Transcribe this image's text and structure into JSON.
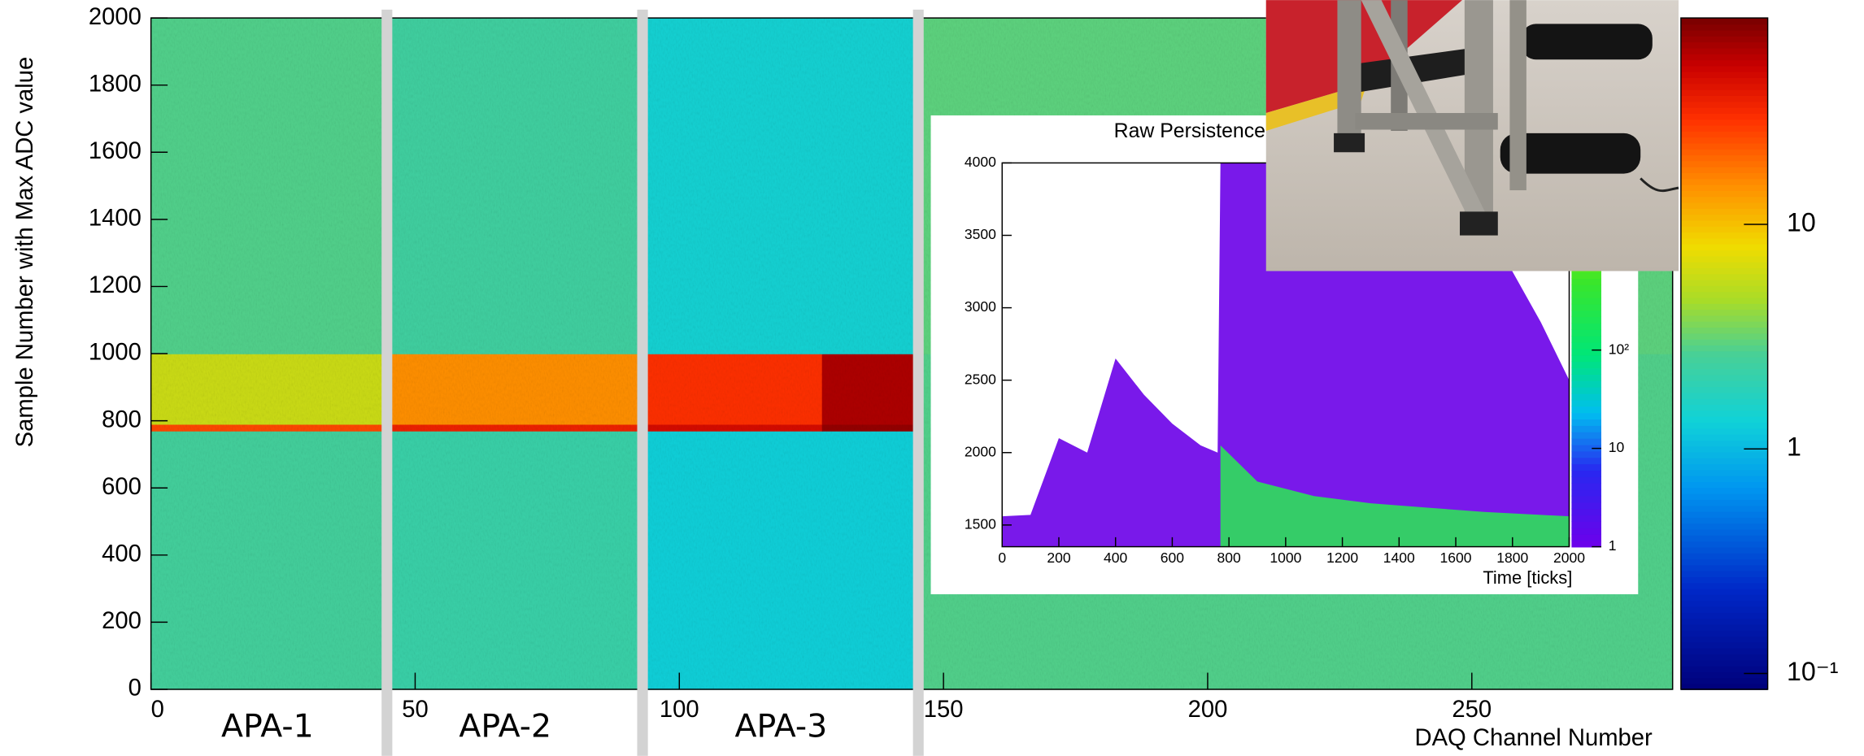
{
  "chart_data": [
    {
      "type": "heatmap",
      "ylabel": "Sample Number with Max ADC value",
      "xlabel": "DAQ Channel Number",
      "annotations": [
        "APA-1",
        "APA-2",
        "APA-3"
      ],
      "xbins": [
        0,
        15,
        30,
        44,
        59,
        74,
        93,
        110,
        127,
        145,
        200,
        288
      ],
      "ybins": [
        0,
        770,
        790,
        1000,
        2000
      ],
      "z": [
        [
          2.5,
          2.5,
          2.5,
          2.2,
          2.2,
          2.2,
          1.3,
          1.3,
          1.3,
          2.8,
          2.8
        ],
        [
          25,
          25,
          25,
          35,
          35,
          35,
          45,
          45,
          70,
          2.8,
          2.8
        ],
        [
          6,
          6,
          6,
          15,
          15,
          15,
          30,
          30,
          60,
          2.8,
          2.8
        ],
        [
          2.8,
          2.8,
          2.8,
          2.4,
          2.4,
          2.4,
          1.4,
          1.4,
          1.4,
          3,
          3
        ]
      ],
      "xlim": [
        0,
        288
      ],
      "ylim": [
        0,
        2000
      ],
      "xticks": [
        0,
        50,
        100,
        150,
        200,
        250
      ],
      "yticks": [
        0,
        200,
        400,
        600,
        800,
        1000,
        1200,
        1400,
        1600,
        1800,
        2000
      ],
      "zlim": [
        0.085,
        83
      ],
      "zlog": true,
      "colormap": "rainbow",
      "zticks": [
        {
          "value": 0.1,
          "label": "10⁻¹"
        },
        1,
        10
      ]
    },
    {
      "type": "area",
      "title": "Raw Persistence",
      "xlabel": "Time [ticks]",
      "x": [
        0,
        100,
        200,
        300,
        400,
        500,
        600,
        700,
        760,
        770,
        900,
        1100,
        1300,
        1500,
        1700,
        1900,
        2000
      ],
      "series": [
        {
          "color": "#6a00e8",
          "values": [
            1560,
            1570,
            2100,
            2000,
            2650,
            2400,
            2200,
            2050,
            2000,
            4000,
            4000,
            4000,
            4000,
            4000,
            3600,
            2900,
            2500
          ]
        },
        {
          "color": "#2ee05a",
          "values": [
            null,
            null,
            null,
            null,
            null,
            null,
            null,
            null,
            null,
            2050,
            1800,
            1700,
            1650,
            1620,
            1590,
            1570,
            1560
          ]
        }
      ],
      "xlim": [
        0,
        2000
      ],
      "ylim": [
        1350,
        4000
      ],
      "xticks": [
        0,
        200,
        400,
        600,
        800,
        1000,
        1200,
        1400,
        1600,
        1800,
        2000
      ],
      "yticks": [
        1500,
        2000,
        2500,
        3000,
        3500,
        4000
      ],
      "zlim": [
        1,
        8000
      ],
      "zlog": true,
      "zticks": [
        1,
        10,
        {
          "value": 100,
          "label": "10²"
        }
      ]
    }
  ]
}
